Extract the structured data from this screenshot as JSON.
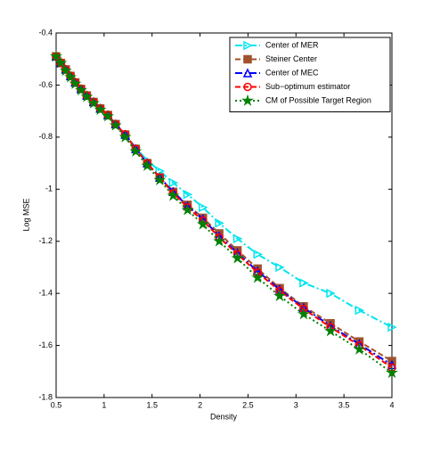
{
  "chart_data": {
    "type": "line",
    "xlabel": "Density",
    "ylabel": "Log MSE",
    "x": [
      0.5,
      0.55,
      0.6,
      0.65,
      0.7,
      0.76,
      0.82,
      0.89,
      0.96,
      1.04,
      1.12,
      1.22,
      1.33,
      1.45,
      1.58,
      1.72,
      1.87,
      2.03,
      2.2,
      2.39,
      2.6,
      2.83,
      3.08,
      3.36,
      3.66,
      4.0
    ],
    "xlim": [
      0.5,
      4
    ],
    "xticks": [
      0.5,
      1,
      1.5,
      2,
      2.5,
      3,
      3.5,
      4
    ],
    "ylim": [
      -1.8,
      -0.4
    ],
    "yticks": [
      -1.8,
      -1.6,
      -1.4,
      -1.2,
      -1,
      -0.8,
      -0.6,
      -0.4
    ],
    "legend": "upper right",
    "series": [
      {
        "name": "Center of MER",
        "color": "#00e5ee",
        "dash": "8 3 2 3",
        "marker": "triangle-right",
        "values": [
          -0.49,
          -0.515,
          -0.54,
          -0.565,
          -0.59,
          -0.615,
          -0.64,
          -0.665,
          -0.69,
          -0.715,
          -0.75,
          -0.79,
          -0.84,
          -0.89,
          -0.93,
          -0.975,
          -1.02,
          -1.07,
          -1.13,
          -1.19,
          -1.25,
          -1.3,
          -1.36,
          -1.4,
          -1.465,
          -1.53
        ]
      },
      {
        "name": "Steiner Center",
        "color": "#a0522d",
        "dash": "6 3",
        "marker": "square",
        "values": [
          -0.49,
          -0.515,
          -0.54,
          -0.565,
          -0.59,
          -0.615,
          -0.64,
          -0.665,
          -0.69,
          -0.715,
          -0.75,
          -0.79,
          -0.845,
          -0.9,
          -0.955,
          -1.01,
          -1.06,
          -1.11,
          -1.17,
          -1.235,
          -1.305,
          -1.38,
          -1.45,
          -1.515,
          -1.585,
          -1.66
        ]
      },
      {
        "name": "Center of MEC",
        "color": "#0000ff",
        "dash": "8 3 2 3",
        "marker": "triangle-up",
        "values": [
          -0.49,
          -0.515,
          -0.54,
          -0.565,
          -0.59,
          -0.615,
          -0.64,
          -0.665,
          -0.69,
          -0.715,
          -0.75,
          -0.79,
          -0.845,
          -0.9,
          -0.955,
          -1.01,
          -1.065,
          -1.115,
          -1.18,
          -1.245,
          -1.315,
          -1.385,
          -1.455,
          -1.525,
          -1.595,
          -1.675
        ]
      },
      {
        "name": "Sub−optimum estimator",
        "color": "#ff0000",
        "dash": "6 3",
        "marker": "circle",
        "values": [
          -0.49,
          -0.515,
          -0.54,
          -0.565,
          -0.59,
          -0.615,
          -0.64,
          -0.665,
          -0.69,
          -0.715,
          -0.75,
          -0.79,
          -0.845,
          -0.9,
          -0.955,
          -1.015,
          -1.07,
          -1.12,
          -1.185,
          -1.25,
          -1.32,
          -1.39,
          -1.46,
          -1.53,
          -1.6,
          -1.685
        ]
      },
      {
        "name": "CM of Possible Target Region",
        "color": "#008000",
        "dash": "2 3",
        "marker": "star",
        "values": [
          -0.49,
          -0.515,
          -0.545,
          -0.57,
          -0.595,
          -0.62,
          -0.645,
          -0.67,
          -0.695,
          -0.72,
          -0.755,
          -0.8,
          -0.855,
          -0.91,
          -0.965,
          -1.025,
          -1.08,
          -1.135,
          -1.2,
          -1.265,
          -1.34,
          -1.41,
          -1.48,
          -1.545,
          -1.615,
          -1.705
        ]
      }
    ]
  }
}
